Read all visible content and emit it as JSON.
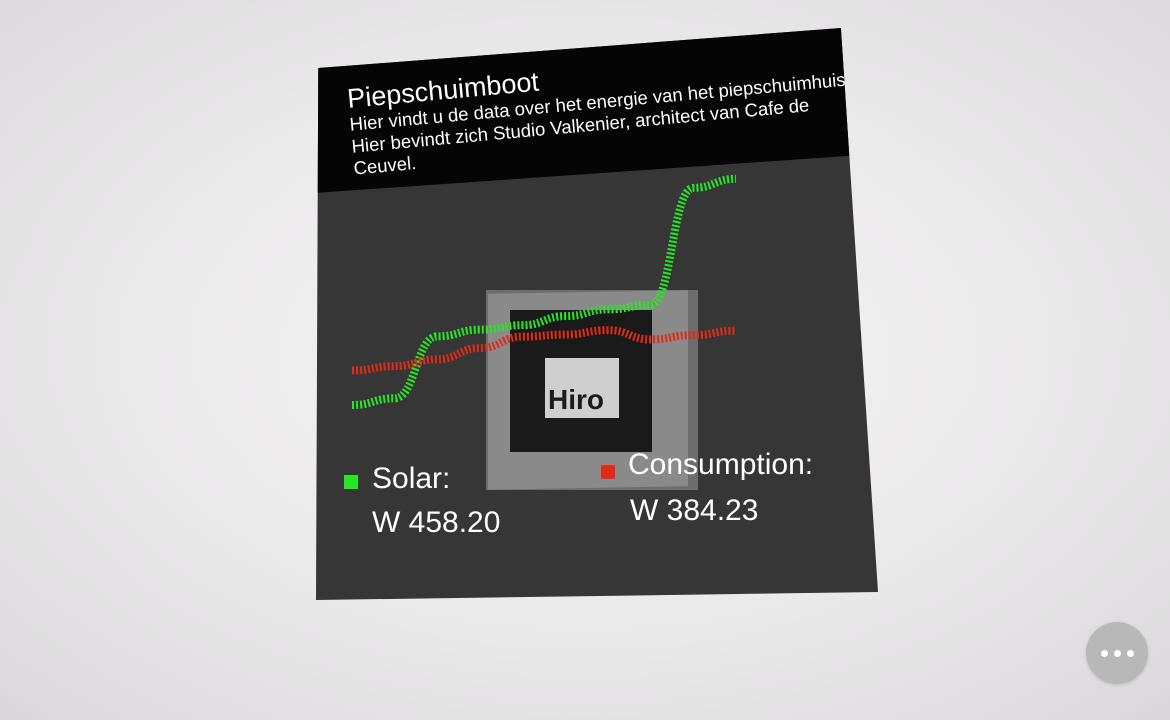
{
  "card": {
    "title": "Piepschuimboot",
    "description": "Hier vindt u de data over het energie van het piepschuimhuis. Hier bevindt zich Studio Valkenier, architect van Cafe de Ceuvel."
  },
  "marker": {
    "label": "Hiro"
  },
  "legend": {
    "solar": {
      "label": "Solar:",
      "value": "W 458.20",
      "color": "#27e527"
    },
    "consumption": {
      "label": "Consumption:",
      "value": "W 384.23",
      "color": "#e12a18"
    }
  },
  "chart_data": {
    "type": "line",
    "series": [
      {
        "name": "Solar",
        "color": "#27e527",
        "values": [
          0.1,
          0.12,
          0.38,
          0.4,
          0.41,
          0.44,
          0.46,
          0.47,
          0.97,
          1.0
        ]
      },
      {
        "name": "Consumption",
        "color": "#e12a18",
        "values": [
          0.25,
          0.26,
          0.28,
          0.32,
          0.36,
          0.36,
          0.37,
          0.32,
          0.33,
          0.34
        ]
      }
    ]
  },
  "menu": {
    "icon": "more-horizontal-icon"
  }
}
